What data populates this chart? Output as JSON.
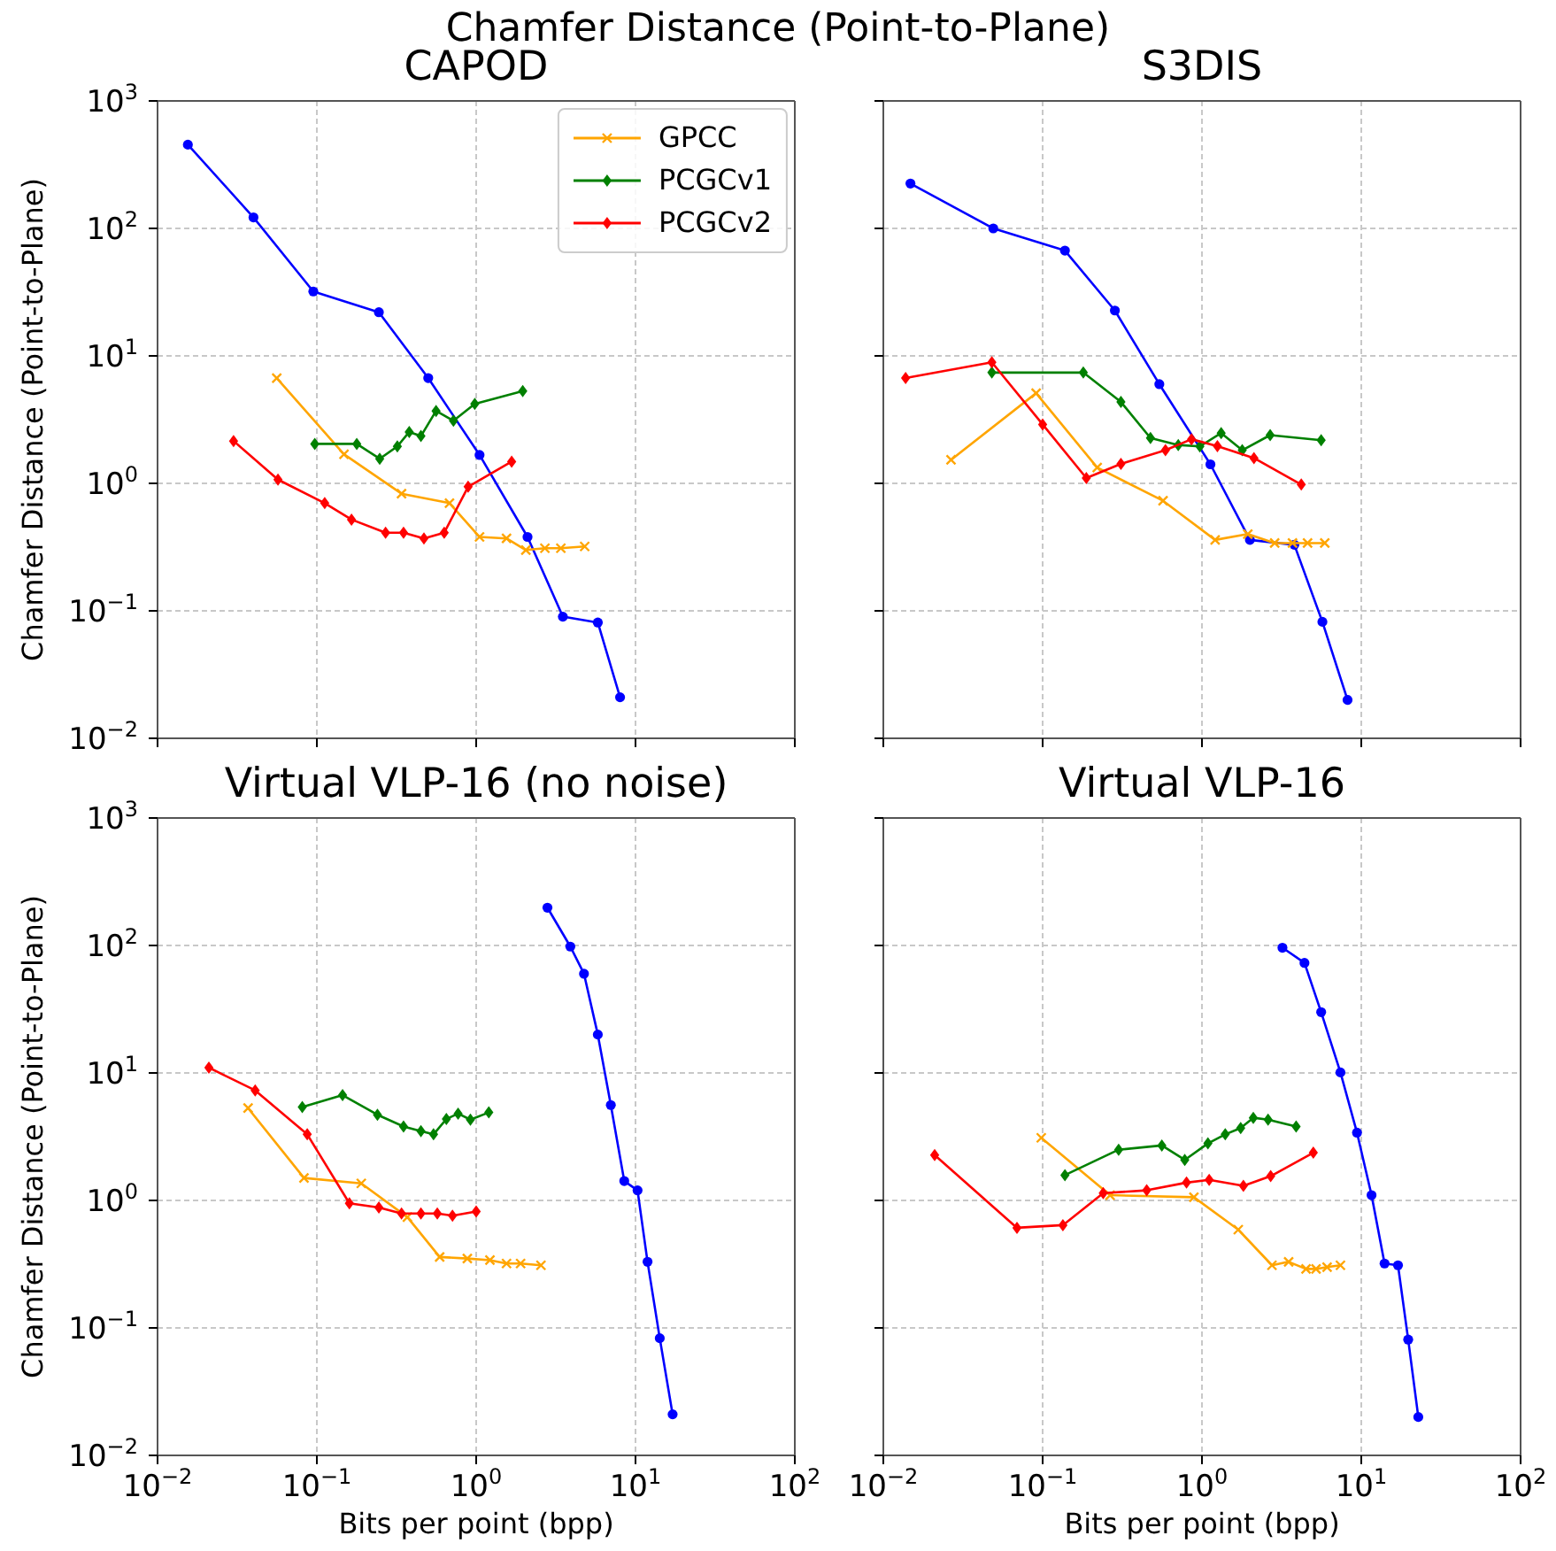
{
  "chart_data": [
    {
      "type": "line",
      "title": "CAPOD",
      "annotations": [
        "Chamfer Distance (Point-to-Plane)"
      ],
      "ylabel": "Chamfer Distance (Point-to-Plane)",
      "log": "xy",
      "grid": true,
      "legend": "top right",
      "tick_labels": "y",
      "xlim": [
        0.01,
        100
      ],
      "xticks": [
        {
          "value": 0.01,
          "label": null
        },
        {
          "value": 0.1,
          "label": null
        },
        {
          "value": 1,
          "label": null
        },
        {
          "value": 10,
          "label": null
        },
        {
          "value": 100,
          "label": null
        }
      ],
      "ylim": [
        0.01,
        1000
      ],
      "yticks": [
        {
          "value": 0.01,
          "label": "10$^{−2}$"
        },
        {
          "value": 0.1,
          "label": "10$^{−1}$"
        },
        {
          "value": 1,
          "label": "10$^{0}$"
        },
        {
          "value": 10,
          "label": "10$^{1}$"
        },
        {
          "value": 100,
          "label": "10$^{2}$"
        },
        {
          "value": 1000,
          "label": "10$^{3}$"
        }
      ],
      "series": [
        {
          "color": "#0000ff",
          "marker": "circle",
          "x": [
            0.0155,
            0.04,
            0.095,
            0.245,
            0.5,
            1.05,
            2.1,
            3.5,
            5.8,
            8.0
          ],
          "values": [
            454,
            122,
            32,
            22,
            6.7,
            1.67,
            0.38,
            0.09,
            0.081,
            0.021
          ]
        },
        {
          "name": "GPCC",
          "color": "#ffa500",
          "marker": "cross",
          "x": [
            0.056,
            0.148,
            0.34,
            0.68,
            1.05,
            1.55,
            2.05,
            2.7,
            3.4,
            4.8
          ],
          "values": [
            6.7,
            1.69,
            0.83,
            0.7,
            0.38,
            0.37,
            0.3,
            0.31,
            0.31,
            0.32
          ]
        },
        {
          "name": "PCGCv1",
          "color": "#008000",
          "marker": "diamond",
          "x": [
            0.097,
            0.178,
            0.248,
            0.32,
            0.38,
            0.45,
            0.56,
            0.72,
            0.98,
            1.96
          ],
          "values": [
            2.04,
            2.04,
            1.56,
            1.95,
            2.53,
            2.35,
            3.7,
            3.1,
            4.2,
            5.3
          ]
        },
        {
          "name": "PCGCv2",
          "color": "#ff0000",
          "marker": "diamond",
          "x": [
            0.03,
            0.057,
            0.112,
            0.165,
            0.27,
            0.35,
            0.47,
            0.63,
            0.89,
            1.67
          ],
          "values": [
            2.15,
            1.07,
            0.7,
            0.52,
            0.41,
            0.41,
            0.37,
            0.41,
            0.94,
            1.48
          ]
        }
      ]
    },
    {
      "type": "line",
      "title": "S3DIS",
      "log": "xy",
      "grid": true,
      "tick_labels": false,
      "xlim": [
        0.01,
        100
      ],
      "xticks": [
        {
          "value": 0.01,
          "label": null
        },
        {
          "value": 0.1,
          "label": null
        },
        {
          "value": 1,
          "label": null
        },
        {
          "value": 10,
          "label": null
        },
        {
          "value": 100,
          "label": null
        }
      ],
      "ylim": [
        0.01,
        1000
      ],
      "yticks": [
        {
          "value": 0.01,
          "label": null
        },
        {
          "value": 0.1,
          "label": null
        },
        {
          "value": 1,
          "label": null
        },
        {
          "value": 10,
          "label": null
        },
        {
          "value": 100,
          "label": null
        },
        {
          "value": 1000,
          "label": null
        }
      ],
      "series": [
        {
          "color": "#0000ff",
          "marker": "circle",
          "x": [
            0.0148,
            0.049,
            0.138,
            0.284,
            0.54,
            1.13,
            2.0,
            3.8,
            5.7,
            8.2
          ],
          "values": [
            225,
            100,
            67,
            22.7,
            6.0,
            1.41,
            0.36,
            0.33,
            0.082,
            0.02
          ]
        },
        {
          "color": "#ffa500",
          "marker": "cross",
          "x": [
            0.0266,
            0.091,
            0.22,
            0.57,
            1.21,
            1.94,
            2.86,
            3.7,
            4.6,
            5.9
          ],
          "values": [
            1.53,
            5.1,
            1.33,
            0.73,
            0.36,
            0.4,
            0.34,
            0.34,
            0.34,
            0.34
          ]
        },
        {
          "color": "#008000",
          "marker": "diamond",
          "x": [
            0.048,
            0.18,
            0.31,
            0.475,
            0.71,
            0.97,
            1.32,
            1.79,
            2.68,
            5.6
          ],
          "values": [
            7.4,
            7.4,
            4.35,
            2.27,
            2.0,
            1.95,
            2.48,
            1.82,
            2.39,
            2.18
          ]
        },
        {
          "color": "#ff0000",
          "marker": "diamond",
          "x": [
            0.0138,
            0.048,
            0.1,
            0.188,
            0.31,
            0.59,
            0.86,
            1.25,
            2.12,
            4.2
          ],
          "values": [
            6.7,
            8.9,
            2.9,
            1.1,
            1.42,
            1.82,
            2.22,
            1.96,
            1.58,
            0.98
          ]
        }
      ]
    },
    {
      "type": "line",
      "title": "Virtual VLP-16 (no noise)",
      "xlabel": "Bits per point (bpp)",
      "ylabel": "Chamfer Distance (Point-to-Plane)",
      "log": "xy",
      "grid": true,
      "xlim": [
        0.01,
        100
      ],
      "xticks": [
        {
          "value": 0.01,
          "label": "10$^{−2}$"
        },
        {
          "value": 0.1,
          "label": "10$^{−1}$"
        },
        {
          "value": 1,
          "label": "10$^{0}$"
        },
        {
          "value": 10,
          "label": "10$^{1}$"
        },
        {
          "value": 100,
          "label": "10$^{2}$"
        }
      ],
      "ylim": [
        0.01,
        1000
      ],
      "yticks": [
        {
          "value": 0.01,
          "label": "10$^{−2}$"
        },
        {
          "value": 0.1,
          "label": "10$^{−1}$"
        },
        {
          "value": 1,
          "label": "10$^{0}$"
        },
        {
          "value": 10,
          "label": "10$^{1}$"
        },
        {
          "value": 100,
          "label": "10$^{2}$"
        },
        {
          "value": 1000,
          "label": "10$^{3}$"
        }
      ],
      "series": [
        {
          "color": "#0000ff",
          "marker": "circle",
          "x": [
            2.8,
            3.9,
            4.75,
            5.8,
            7.0,
            8.5,
            10.3,
            11.9,
            14.2,
            17.1
          ],
          "values": [
            198,
            98,
            60,
            20,
            5.6,
            1.42,
            1.2,
            0.33,
            0.083,
            0.021
          ]
        },
        {
          "color": "#ffa500",
          "marker": "cross",
          "x": [
            0.037,
            0.083,
            0.19,
            0.37,
            0.59,
            0.88,
            1.22,
            1.55,
            1.9,
            2.55
          ],
          "values": [
            5.3,
            1.5,
            1.36,
            0.74,
            0.36,
            0.35,
            0.34,
            0.32,
            0.32,
            0.31
          ]
        },
        {
          "color": "#008000",
          "marker": "diamond",
          "x": [
            0.081,
            0.145,
            0.24,
            0.35,
            0.45,
            0.54,
            0.65,
            0.77,
            0.92,
            1.2
          ],
          "values": [
            5.4,
            6.7,
            4.7,
            3.8,
            3.5,
            3.3,
            4.35,
            4.8,
            4.3,
            4.9
          ]
        },
        {
          "color": "#ff0000",
          "marker": "diamond",
          "x": [
            0.021,
            0.041,
            0.087,
            0.16,
            0.245,
            0.34,
            0.45,
            0.57,
            0.71,
            1.0
          ],
          "values": [
            11,
            7.3,
            3.3,
            0.95,
            0.88,
            0.79,
            0.79,
            0.79,
            0.76,
            0.82
          ]
        }
      ]
    },
    {
      "type": "line",
      "title": "Virtual VLP-16",
      "xlabel": "Bits per point (bpp)",
      "log": "xy",
      "grid": true,
      "tick_labels": "x",
      "xlim": [
        0.01,
        100
      ],
      "xticks": [
        {
          "value": 0.01,
          "label": "10$^{−2}$"
        },
        {
          "value": 0.1,
          "label": "10$^{−1}$"
        },
        {
          "value": 1,
          "label": "10$^{0}$"
        },
        {
          "value": 10,
          "label": "10$^{1}$"
        },
        {
          "value": 100,
          "label": "10$^{2}$"
        }
      ],
      "ylim": [
        0.01,
        1000
      ],
      "yticks": [
        {
          "value": 0.01,
          "label": null
        },
        {
          "value": 0.1,
          "label": null
        },
        {
          "value": 1,
          "label": null
        },
        {
          "value": 10,
          "label": null
        },
        {
          "value": 100,
          "label": null
        },
        {
          "value": 1000,
          "label": null
        }
      ],
      "series": [
        {
          "color": "#0000ff",
          "marker": "circle",
          "x": [
            3.2,
            4.4,
            5.6,
            7.4,
            9.4,
            11.6,
            14,
            17,
            19.7,
            22.8
          ],
          "values": [
            96,
            73,
            30,
            10.1,
            3.4,
            1.1,
            0.32,
            0.31,
            0.081,
            0.02
          ]
        },
        {
          "color": "#ffa500",
          "marker": "cross",
          "x": [
            0.098,
            0.265,
            0.89,
            1.69,
            2.75,
            3.5,
            4.5,
            5.2,
            6.1,
            7.4
          ],
          "values": [
            3.1,
            1.1,
            1.06,
            0.59,
            0.31,
            0.33,
            0.29,
            0.29,
            0.3,
            0.31
          ]
        },
        {
          "color": "#008000",
          "marker": "diamond",
          "x": [
            0.138,
            0.3,
            0.56,
            0.78,
            1.09,
            1.4,
            1.75,
            2.1,
            2.6,
            3.9
          ],
          "values": [
            1.58,
            2.5,
            2.7,
            2.08,
            2.8,
            3.3,
            3.7,
            4.45,
            4.3,
            3.8
          ]
        },
        {
          "color": "#ff0000",
          "marker": "diamond",
          "x": [
            0.021,
            0.069,
            0.134,
            0.24,
            0.45,
            0.8,
            1.11,
            1.82,
            2.7,
            5.0
          ],
          "values": [
            2.27,
            0.61,
            0.64,
            1.14,
            1.2,
            1.38,
            1.45,
            1.3,
            1.55,
            2.37
          ]
        }
      ]
    }
  ]
}
